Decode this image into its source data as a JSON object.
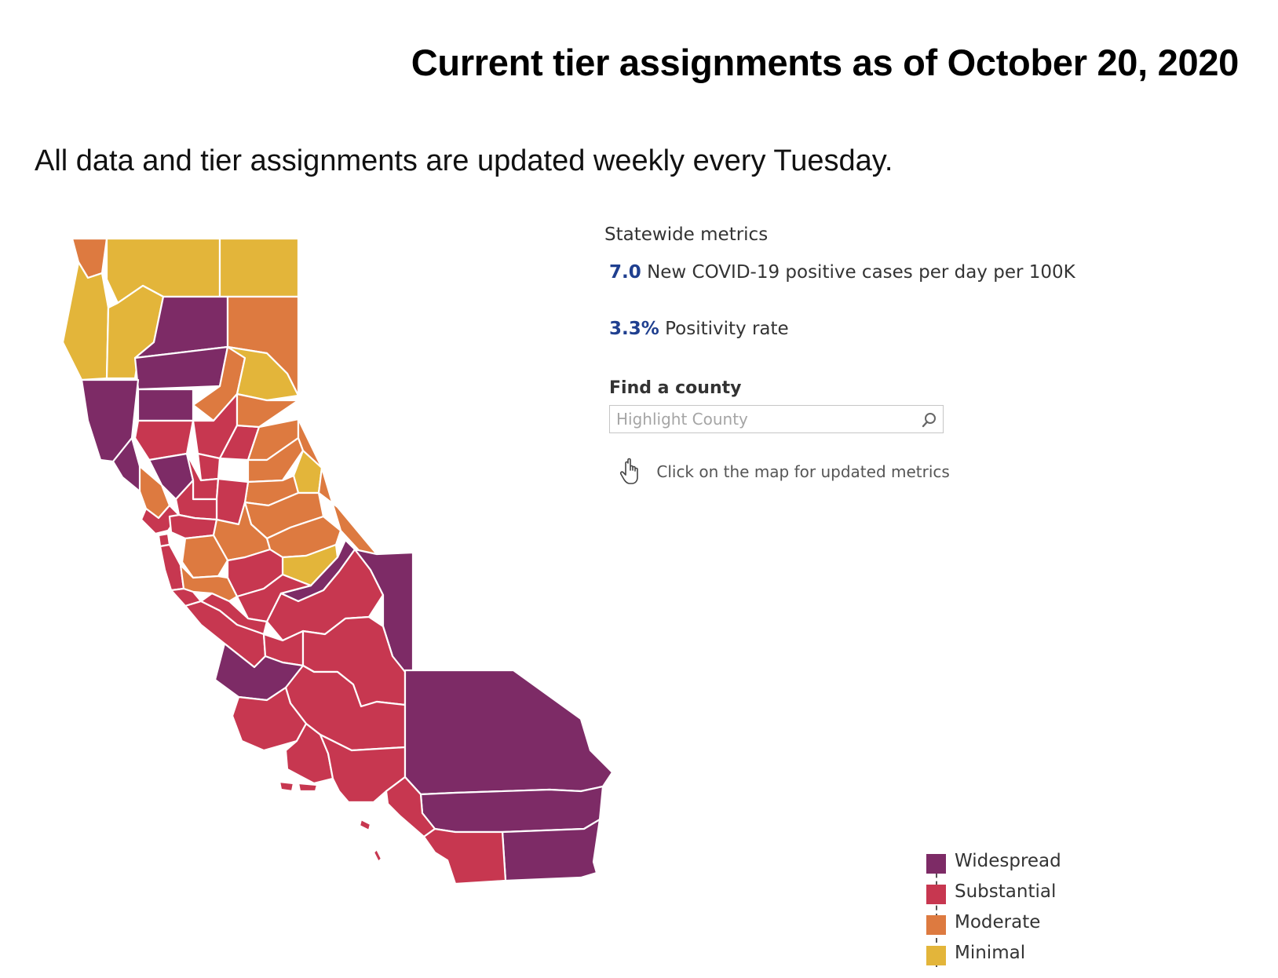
{
  "title": "Current tier assignments as of October 20, 2020",
  "subtitle": "All data and tier assignments are updated weekly every Tuesday.",
  "colors": {
    "widespread": "#7d2b66",
    "substantial": "#c73750",
    "moderate": "#dd7a40",
    "minimal": "#e3b53a",
    "metric_value": "#1f3f8f"
  },
  "statewide": {
    "heading": "Statewide metrics",
    "cases_value": "7.0",
    "cases_label": "New COVID-19 positive cases per day per 100K",
    "positivity_value": "3.3%",
    "positivity_label": "Positivity rate"
  },
  "search": {
    "label": "Find a county",
    "placeholder": "Highlight County",
    "icon": "search-icon"
  },
  "hint": {
    "icon": "pointer-hand-icon",
    "text": "Click on the map for updated metrics"
  },
  "legend": [
    {
      "label": "Widespread",
      "tier": "widespread"
    },
    {
      "label": "Substantial",
      "tier": "substantial"
    },
    {
      "label": "Moderate",
      "tier": "moderate"
    },
    {
      "label": "Minimal",
      "tier": "minimal"
    }
  ],
  "map": {
    "counties": [
      {
        "tier": "moderate"
      },
      {
        "tier": "minimal"
      },
      {
        "tier": "minimal"
      },
      {
        "tier": "minimal"
      },
      {
        "tier": "minimal"
      },
      {
        "tier": "widespread"
      },
      {
        "tier": "moderate"
      },
      {
        "tier": "widespread"
      },
      {
        "tier": "widespread"
      },
      {
        "tier": "moderate"
      },
      {
        "tier": "minimal"
      },
      {
        "tier": "widespread"
      },
      {
        "tier": "widespread"
      },
      {
        "tier": "substantial"
      },
      {
        "tier": "substantial"
      },
      {
        "tier": "substantial"
      },
      {
        "tier": "substantial"
      },
      {
        "tier": "moderate"
      },
      {
        "tier": "moderate"
      },
      {
        "tier": "moderate"
      },
      {
        "tier": "moderate"
      },
      {
        "tier": "minimal"
      },
      {
        "tier": "moderate"
      },
      {
        "tier": "widespread"
      },
      {
        "tier": "moderate"
      },
      {
        "tier": "substantial"
      },
      {
        "tier": "substantial"
      },
      {
        "tier": "substantial"
      },
      {
        "tier": "substantial"
      },
      {
        "tier": "substantial"
      },
      {
        "tier": "moderate"
      },
      {
        "tier": "moderate"
      },
      {
        "tier": "moderate"
      },
      {
        "tier": "minimal"
      },
      {
        "tier": "widespread"
      },
      {
        "tier": "moderate"
      },
      {
        "tier": "substantial"
      },
      {
        "tier": "substantial"
      },
      {
        "tier": "substantial"
      },
      {
        "tier": "substantial"
      },
      {
        "tier": "moderate"
      },
      {
        "tier": "substantial"
      },
      {
        "tier": "substantial"
      },
      {
        "tier": "widespread"
      },
      {
        "tier": "substantial"
      },
      {
        "tier": "substantial"
      },
      {
        "tier": "substantial"
      },
      {
        "tier": "substantial"
      },
      {
        "tier": "widespread"
      },
      {
        "tier": "substantial"
      },
      {
        "tier": "substantial"
      },
      {
        "tier": "substantial"
      },
      {
        "tier": "substantial"
      },
      {
        "tier": "widespread"
      },
      {
        "tier": "widespread"
      },
      {
        "tier": "substantial"
      },
      {
        "tier": "widespread"
      },
      {
        "tier": "substantial"
      }
    ]
  }
}
